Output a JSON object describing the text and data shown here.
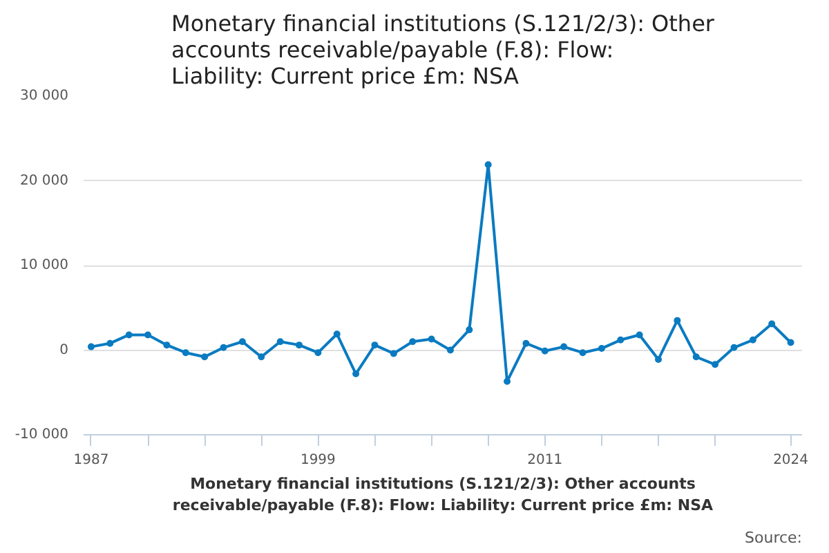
{
  "chart_data": {
    "type": "line",
    "title": "Monetary financial institutions (S.121/2/3): Other accounts receivable/payable (F.8): Flow: Liability: Current price £m: NSA",
    "xlabel": "Monetary financial institutions (S.121/2/3): Other accounts receivable/payable (F.8): Flow: Liability: Current price £m: NSA",
    "annotations": [
      "Source:"
    ],
    "x": [
      1987,
      1988,
      1989,
      1990,
      1991,
      1992,
      1993,
      1994,
      1995,
      1996,
      1997,
      1998,
      1999,
      2000,
      2001,
      2002,
      2003,
      2004,
      2005,
      2006,
      2007,
      2008,
      2009,
      2010,
      2011,
      2012,
      2013,
      2014,
      2015,
      2016,
      2017,
      2018,
      2019,
      2020,
      2021,
      2022,
      2023,
      2024
    ],
    "series": [
      {
        "color": "#0a7bc1",
        "values": [
          400,
          800,
          1800,
          1800,
          600,
          -300,
          -800,
          300,
          1000,
          -800,
          1000,
          600,
          -300,
          1900,
          -2800,
          600,
          -400,
          1000,
          1300,
          0,
          2400,
          21900,
          -3700,
          800,
          -100,
          400,
          -300,
          200,
          1200,
          1800,
          -1100,
          3500,
          -800,
          -1700,
          300,
          1200,
          3100,
          900
        ]
      }
    ],
    "xlim": [
      1986.6,
      2024.6
    ],
    "ylim": [
      -10000,
      30000
    ],
    "xticks": [
      1987,
      {
        "value": 1990,
        "label": null
      },
      {
        "value": 1993,
        "label": null
      },
      {
        "value": 1996,
        "label": null
      },
      1999,
      {
        "value": 2002,
        "label": null
      },
      {
        "value": 2005,
        "label": null
      },
      {
        "value": 2008,
        "label": null
      },
      2011,
      {
        "value": 2014,
        "label": null
      },
      {
        "value": 2017,
        "label": null
      },
      {
        "value": 2020,
        "label": null
      },
      2024
    ],
    "yticks": [
      {
        "value": -10000,
        "label": "-10 000"
      },
      0,
      {
        "value": 10000,
        "label": "10 000"
      },
      {
        "value": 20000,
        "label": "20 000"
      },
      {
        "value": 30000,
        "label": "30 000"
      }
    ],
    "grid": "y",
    "marker": "circle",
    "line_style": "solid"
  }
}
